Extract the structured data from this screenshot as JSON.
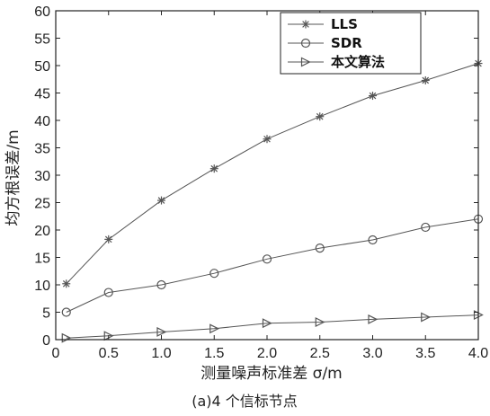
{
  "chart_data": {
    "type": "line",
    "x": [
      0.1,
      0.5,
      1.0,
      1.5,
      2.0,
      2.5,
      3.0,
      3.5,
      4.0
    ],
    "series": [
      {
        "name": "LLS",
        "marker": "asterisk",
        "values": [
          10.2,
          18.3,
          25.4,
          31.2,
          36.6,
          40.7,
          44.5,
          47.3,
          50.4
        ]
      },
      {
        "name": "SDR",
        "marker": "circle",
        "values": [
          5.0,
          8.6,
          10.0,
          12.1,
          14.7,
          16.7,
          18.2,
          20.5,
          22.0
        ]
      },
      {
        "name": "本文算法",
        "marker": "triangle-right",
        "values": [
          0.3,
          0.7,
          1.4,
          2.0,
          3.0,
          3.2,
          3.7,
          4.1,
          4.5
        ]
      }
    ],
    "xlim": [
      0,
      4.0
    ],
    "ylim": [
      0,
      60
    ],
    "xticks": [
      "0",
      "0.5",
      "1.0",
      "1.5",
      "2.0",
      "2.5",
      "3.0",
      "3.5",
      "4.0"
    ],
    "yticks": [
      "0",
      "5",
      "10",
      "15",
      "20",
      "25",
      "30",
      "35",
      "40",
      "45",
      "50",
      "55",
      "60"
    ],
    "xlabel": "测量噪声标准差 σ/m",
    "ylabel": "均方根误差/m",
    "caption": "(a)4 个信标节点",
    "legend_position": "top-right",
    "grid": false,
    "colors": {
      "line": "#555555",
      "marker": "#555555",
      "axis": "#222222"
    }
  }
}
